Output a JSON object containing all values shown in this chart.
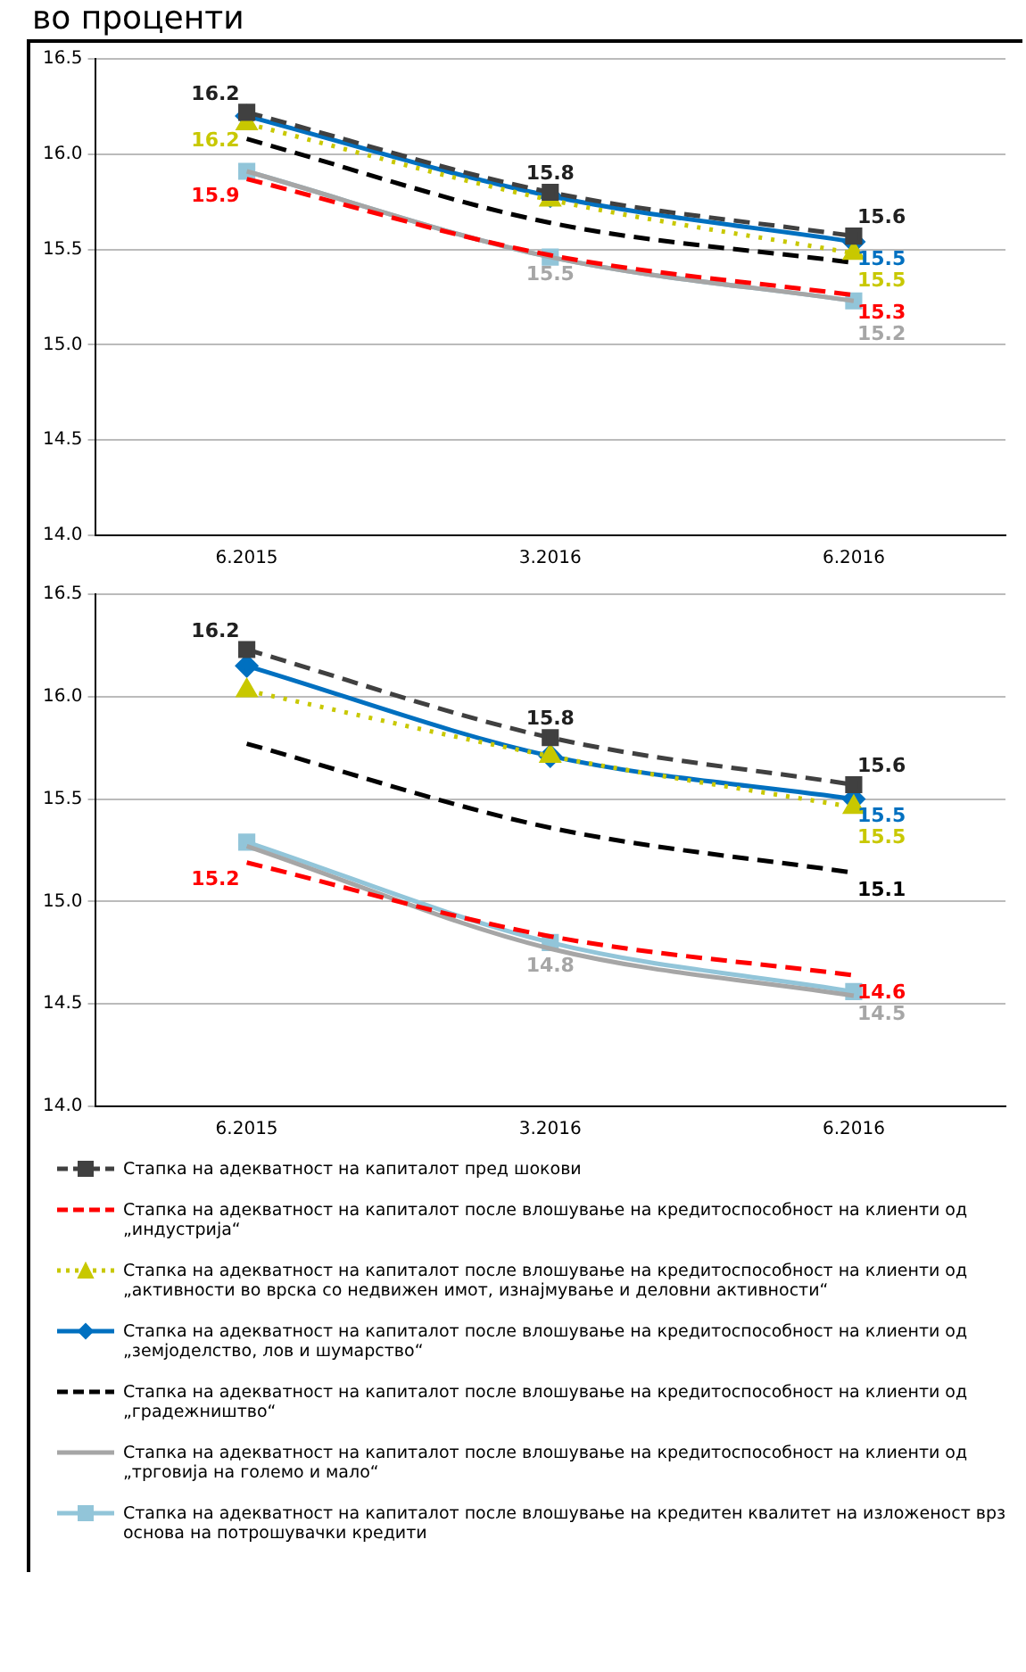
{
  "chart_data": [
    {
      "type": "line",
      "title": "во проценти",
      "categories": [
        "6.2015",
        "3.2016",
        "6.2016"
      ],
      "ylim": [
        14,
        16.5
      ],
      "yticks": [
        {
          "value": 14,
          "label": "14.0"
        },
        {
          "value": 14.5,
          "label": "14.5"
        },
        {
          "value": 15,
          "label": "15.0"
        },
        {
          "value": 15.5,
          "label": "15.5"
        },
        {
          "value": 16,
          "label": "16.0"
        },
        {
          "value": 16.5,
          "label": "16.5"
        }
      ],
      "grid": "y",
      "legend": false,
      "series": [
        {
          "color": "#404040",
          "line_style": "dashed",
          "marker": "square",
          "values": [
            16.22,
            15.8,
            15.57
          ],
          "value_labels": [
            "16.2",
            "15.8",
            "15.6"
          ]
        },
        {
          "color": "#ff0000",
          "line_style": "dashed",
          "marker": "none",
          "values": [
            15.87,
            15.47,
            15.26
          ],
          "value_labels": [
            "15.9",
            null,
            "15.3"
          ]
        },
        {
          "color": "#c8c800",
          "line_style": "dotted",
          "marker": "triangle",
          "values": [
            16.16,
            15.76,
            15.48
          ],
          "value_labels": [
            "16.2",
            null,
            "15.5"
          ]
        },
        {
          "color": "#0070c0",
          "line_style": "solid",
          "marker": "diamond",
          "values": [
            16.2,
            15.78,
            15.54
          ],
          "value_labels": [
            null,
            null,
            "15.5"
          ]
        },
        {
          "color": "#000000",
          "line_style": "dashed",
          "marker": "none",
          "values": [
            16.08,
            15.64,
            15.43
          ]
        },
        {
          "color": "#a6a6a6",
          "line_style": "solid",
          "marker": "none",
          "values": [
            15.91,
            15.46,
            15.23
          ],
          "value_labels": [
            null,
            "15.5",
            "15.2"
          ]
        },
        {
          "color": "#92c5d9",
          "line_style": "solid",
          "marker": "square",
          "values": [
            15.91,
            15.46,
            15.23
          ]
        }
      ]
    },
    {
      "type": "line",
      "categories": [
        "6.2015",
        "3.2016",
        "6.2016"
      ],
      "ylim": [
        14,
        16.5
      ],
      "yticks": [
        {
          "value": 14,
          "label": "14.0"
        },
        {
          "value": 14.5,
          "label": "14.5"
        },
        {
          "value": 15,
          "label": "15.0"
        },
        {
          "value": 15.5,
          "label": "15.5"
        },
        {
          "value": 16,
          "label": "16.0"
        },
        {
          "value": 16.5,
          "label": "16.5"
        }
      ],
      "grid": "y",
      "legend": "bottom",
      "series": [
        {
          "name": "Стапка на адекватност на капиталот пред шокови",
          "color": "#404040",
          "line_style": "dashed",
          "marker": "square",
          "values": [
            16.23,
            15.8,
            15.57
          ],
          "value_labels": [
            "16.2",
            "15.8",
            "15.6"
          ]
        },
        {
          "name": "Стапка на адекватност на капиталот после влошување на кредитоспособност на клиенти од „индустрија“",
          "color": "#ff0000",
          "line_style": "dashed",
          "marker": "none",
          "values": [
            15.19,
            14.83,
            14.64
          ],
          "value_labels": [
            "15.2",
            null,
            "14.6"
          ]
        },
        {
          "name": "Стапка на адекватност на капиталот после влошување на кредитоспособност на клиенти од „активности во врска со недвижен имот, изнајмување и деловни активности“",
          "color": "#c8c800",
          "line_style": "dotted",
          "marker": "triangle",
          "values": [
            16.03,
            15.71,
            15.46
          ],
          "value_labels": [
            null,
            null,
            "15.5"
          ]
        },
        {
          "name": "Стапка на адекватност на капиталот после влошување на кредитоспособност на клиенти од „земјоделство, лов и шумарство“",
          "color": "#0070c0",
          "line_style": "solid",
          "marker": "diamond",
          "values": [
            16.15,
            15.71,
            15.5
          ],
          "value_labels": [
            null,
            null,
            "15.5"
          ]
        },
        {
          "name": "Стапка на адекватност на капиталот после влошување на кредитоспособност на клиенти од „градежништво“",
          "color": "#000000",
          "line_style": "dashed",
          "marker": "none",
          "values": [
            15.77,
            15.36,
            15.14
          ],
          "value_labels": [
            null,
            null,
            "15.1"
          ]
        },
        {
          "name": "Стапка на адекватност на капиталот после влошување на кредитоспособност на клиенти од „трговија на големо и мало“",
          "color": "#a6a6a6",
          "line_style": "solid",
          "marker": "none",
          "values": [
            15.27,
            14.77,
            14.54
          ],
          "value_labels": [
            null,
            "14.8",
            "14.5"
          ]
        },
        {
          "name": "Стапка на адекватност на капиталот после влошување на кредитен квалитет на изложеност врз основа на потрошувачки кредити",
          "color": "#92c5d9",
          "line_style": "solid",
          "marker": "square",
          "values": [
            15.29,
            14.8,
            14.56
          ]
        }
      ]
    }
  ]
}
